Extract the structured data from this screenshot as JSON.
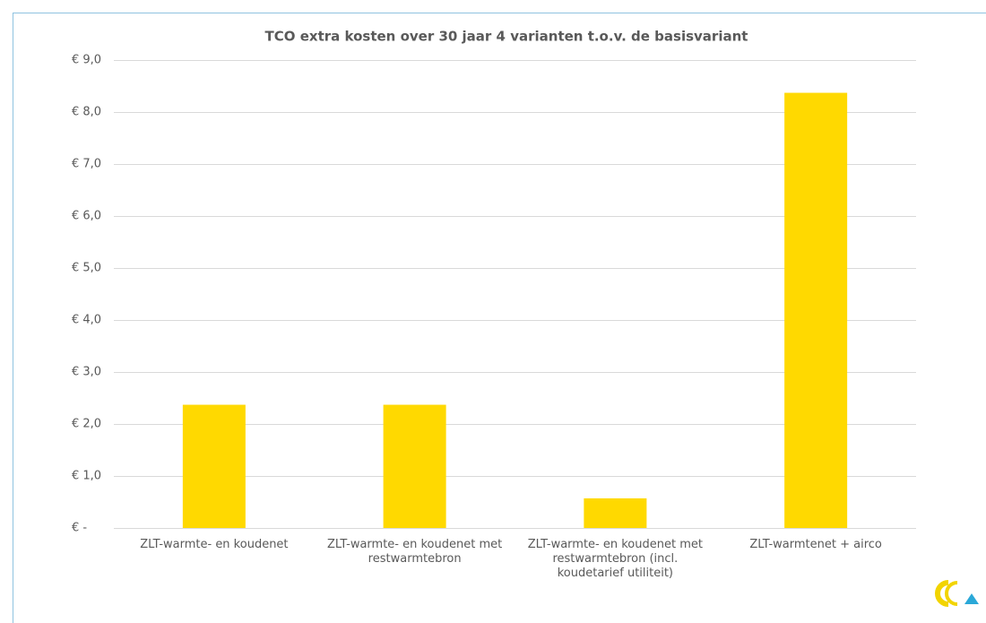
{
  "chart_data": {
    "type": "bar",
    "title": "TCO extra kosten over 30 jaar 4 varianten t.o.v. de basisvariant",
    "categories": [
      "ZLT-warmte- en koudenet",
      "ZLT-warmte- en koudenet met restwarmtebron",
      "ZLT-warmte- en koudenet met restwarmtebron (incl. koudetarief utiliteit)",
      "ZLT-warmtenet + airco"
    ],
    "values": [
      2.37,
      2.37,
      0.57,
      8.37
    ],
    "color": "#ffd900",
    "ylim": [
      0,
      9
    ],
    "yticks": [
      {
        "value": 0,
        "label": "€ -"
      },
      {
        "value": 1,
        "label": "€ 1,0"
      },
      {
        "value": 2,
        "label": "€ 2,0"
      },
      {
        "value": 3,
        "label": "€ 3,0"
      },
      {
        "value": 4,
        "label": "€ 4,0"
      },
      {
        "value": 5,
        "label": "€ 5,0"
      },
      {
        "value": 6,
        "label": "€ 6,0"
      },
      {
        "value": 7,
        "label": "€ 7,0"
      },
      {
        "value": 8,
        "label": "€ 8,0"
      },
      {
        "value": 9,
        "label": "€ 9,0"
      }
    ],
    "grid": true
  }
}
